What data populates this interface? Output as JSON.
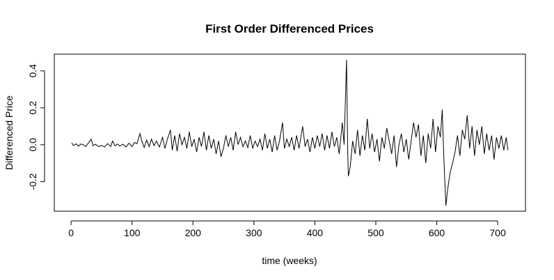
{
  "chart_data": {
    "type": "line",
    "title": "First Order Differenced Prices",
    "x_label": "time (weeks)",
    "y_label": "Differenced Price",
    "x": [
      1,
      4,
      8,
      12,
      16,
      20,
      24,
      28,
      33,
      36,
      40,
      45,
      50,
      55,
      60,
      65,
      68,
      72,
      76,
      80,
      85,
      90,
      95,
      100,
      104,
      108,
      113,
      116,
      120,
      124,
      128,
      132,
      136,
      140,
      145,
      150,
      154,
      158,
      163,
      166,
      170,
      174,
      178,
      182,
      186,
      190,
      194,
      198,
      202,
      206,
      210,
      214,
      218,
      222,
      226,
      230,
      234,
      238,
      242,
      246,
      250,
      254,
      258,
      262,
      266,
      270,
      274,
      278,
      282,
      286,
      290,
      294,
      298,
      302,
      306,
      310,
      314,
      318,
      322,
      326,
      330,
      334,
      338,
      342,
      347,
      350,
      354,
      358,
      362,
      366,
      370,
      374,
      380,
      384,
      388,
      392,
      396,
      400,
      404,
      408,
      412,
      416,
      420,
      424,
      428,
      432,
      436,
      440,
      445,
      448,
      450,
      452,
      454,
      455,
      458,
      462,
      466,
      470,
      474,
      478,
      482,
      486,
      490,
      494,
      498,
      502,
      506,
      510,
      514,
      518,
      522,
      526,
      530,
      534,
      538,
      542,
      546,
      550,
      554,
      558,
      562,
      566,
      570,
      574,
      578,
      582,
      586,
      590,
      594,
      598,
      602,
      606,
      609,
      612,
      615,
      618,
      622,
      626,
      630,
      634,
      638,
      642,
      646,
      650,
      654,
      658,
      662,
      666,
      670,
      674,
      678,
      682,
      686,
      690,
      694,
      698,
      702,
      706,
      710,
      714,
      717
    ],
    "series": [
      {
        "name": "Differenced Price",
        "color": "#000000",
        "values": [
          0.01,
          -0.005,
          0.005,
          -0.008,
          0.004,
          0.0,
          -0.01,
          0.008,
          0.03,
          -0.005,
          0.002,
          -0.01,
          -0.004,
          -0.012,
          0.006,
          -0.01,
          0.02,
          -0.006,
          0.004,
          -0.008,
          0.003,
          -0.012,
          0.008,
          -0.01,
          0.012,
          0.005,
          0.06,
          0.02,
          -0.015,
          0.025,
          -0.01,
          0.03,
          -0.005,
          0.02,
          -0.012,
          0.04,
          -0.02,
          0.03,
          0.08,
          -0.03,
          0.05,
          -0.035,
          0.06,
          0.0,
          0.04,
          -0.02,
          0.07,
          -0.01,
          0.03,
          -0.04,
          0.04,
          -0.01,
          0.07,
          -0.03,
          0.05,
          -0.02,
          0.03,
          -0.05,
          0.02,
          -0.065,
          -0.02,
          0.05,
          -0.01,
          0.04,
          -0.03,
          0.07,
          0.0,
          0.04,
          -0.01,
          0.02,
          -0.015,
          0.05,
          -0.02,
          0.02,
          -0.01,
          0.03,
          -0.03,
          0.06,
          -0.02,
          0.03,
          -0.04,
          0.05,
          -0.03,
          0.02,
          0.12,
          -0.02,
          0.03,
          -0.01,
          0.04,
          -0.03,
          0.05,
          -0.02,
          0.1,
          -0.01,
          0.03,
          -0.04,
          0.04,
          -0.02,
          0.05,
          -0.01,
          0.06,
          -0.03,
          0.05,
          -0.02,
          0.07,
          -0.01,
          0.04,
          -0.05,
          0.12,
          0.0,
          0.23,
          0.46,
          -0.05,
          -0.17,
          -0.12,
          0.02,
          -0.05,
          0.08,
          -0.06,
          0.05,
          -0.03,
          0.14,
          -0.02,
          0.06,
          -0.04,
          0.03,
          -0.09,
          0.04,
          -0.02,
          0.09,
          0.02,
          -0.05,
          0.05,
          -0.12,
          0.0,
          0.06,
          -0.04,
          0.03,
          -0.08,
          0.02,
          0.12,
          0.04,
          0.11,
          -0.06,
          0.05,
          -0.1,
          0.06,
          -0.02,
          0.14,
          -0.04,
          0.1,
          0.04,
          0.19,
          -0.1,
          -0.33,
          -0.24,
          -0.15,
          -0.1,
          -0.04,
          0.05,
          -0.06,
          0.08,
          0.03,
          0.16,
          -0.02,
          0.1,
          -0.06,
          0.08,
          0.0,
          0.1,
          -0.05,
          0.06,
          -0.03,
          0.05,
          -0.08,
          0.04,
          -0.02,
          0.05,
          -0.03,
          0.04,
          -0.03
        ]
      }
    ],
    "xlim": [
      -27.6,
      745.6
    ],
    "xticks": [
      0,
      100,
      200,
      300,
      400,
      500,
      600,
      700
    ],
    "ylim": [
      -0.36,
      0.49
    ],
    "yticks": [
      -0.2,
      {
        "value": 0,
        "label": "0.0"
      },
      0.2,
      0.4
    ]
  }
}
